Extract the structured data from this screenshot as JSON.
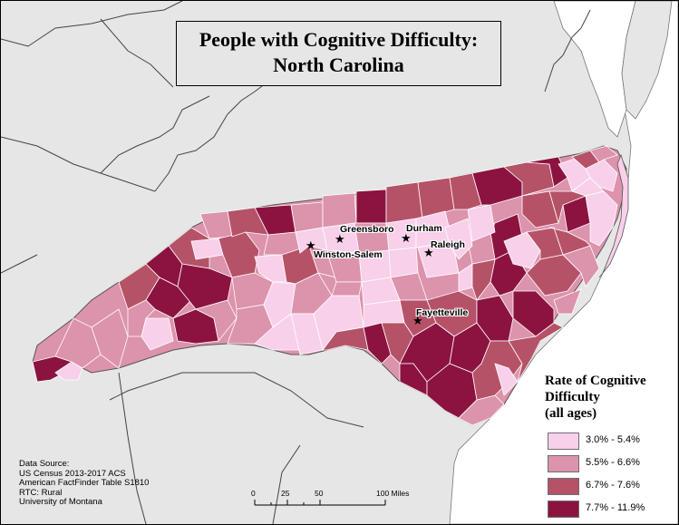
{
  "title": {
    "line1": "People with Cognitive Difficulty:",
    "line2": "North Carolina"
  },
  "cities": [
    {
      "name": "Greensboro"
    },
    {
      "name": "Durham"
    },
    {
      "name": "Raleigh"
    },
    {
      "name": "Winston-Salem"
    },
    {
      "name": "Fayetteville"
    }
  ],
  "legend": {
    "title_lines": [
      "Rate of Cognitive",
      "Difficulty",
      "(all ages)"
    ],
    "items": [
      {
        "label": "3.0% - 5.4%",
        "color": "#f8d0ea"
      },
      {
        "label": "5.5% - 6.6%",
        "color": "#dc93ac"
      },
      {
        "label": "6.7% - 7.6%",
        "color": "#b65268"
      },
      {
        "label": "7.7% - 11.9%",
        "color": "#8c1340"
      }
    ]
  },
  "source": {
    "lines": [
      "Data Source:",
      "US Census 2013-2017 ACS",
      "American FactFinder Table S1810",
      "RTC: Rural",
      "University of Montana"
    ]
  },
  "scale_bar": {
    "ticks": [
      "0",
      "25",
      "50",
      "100 Miles"
    ]
  },
  "colors": {
    "land": "#e6e6e6",
    "water": "#ffffff",
    "border": "#555555"
  }
}
